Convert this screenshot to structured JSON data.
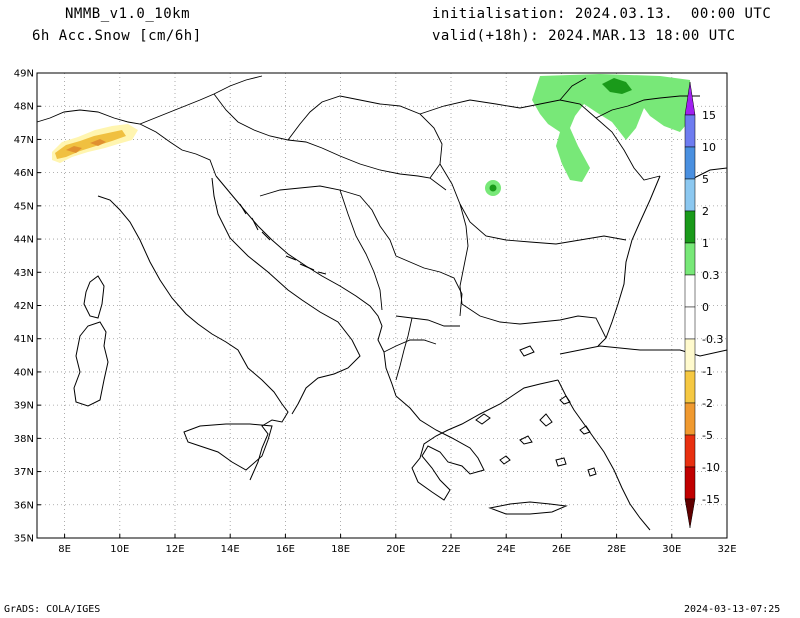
{
  "header": {
    "model": "NMMB_v1.0_10km",
    "variable": "6h Acc.Snow [cm/6h]",
    "init": "initialisation: 2024.03.13.  00:00 UTC",
    "valid": "valid(+18h): 2024.MAR.13 18:00 UTC"
  },
  "footer": {
    "credit": "GrADS: COLA/IGES",
    "timestamp": "2024-03-13-07:25"
  },
  "axes": {
    "lat_labels": [
      "35N",
      "36N",
      "37N",
      "38N",
      "39N",
      "40N",
      "41N",
      "42N",
      "43N",
      "44N",
      "45N",
      "46N",
      "47N",
      "48N",
      "49N"
    ],
    "lon_labels": [
      "8E",
      "10E",
      "12E",
      "14E",
      "16E",
      "18E",
      "20E",
      "22E",
      "24E",
      "26E",
      "28E",
      "30E",
      "32E"
    ],
    "lat_range": [
      35,
      49
    ],
    "lon_range": [
      7,
      32
    ]
  },
  "colorbar": {
    "labels": [
      "15",
      "10",
      "5",
      "2",
      "1",
      "0.3",
      "0",
      "-0.3",
      "-1",
      "-2",
      "-5",
      "-10",
      "-15"
    ],
    "colors": {
      "above_15": "#a020f0",
      "10_15": "#6e7cf0",
      "5_10": "#4a90e0",
      "2_5": "#8cc8f0",
      "1_2": "#1a9a1a",
      "03_1": "#78e878",
      "neg03_0": "#fffacd",
      "neg1_neg03": "#f5c842",
      "neg2_neg1": "#f09a30",
      "neg5_neg2": "#e83010",
      "neg10_neg5": "#c00000",
      "neg15_neg10": "#800000",
      "below_neg15": "#600000"
    }
  },
  "colors": {
    "coast": "#000000",
    "border": "#000000",
    "grid": "#999999",
    "light_green": "#78e878",
    "dark_green": "#1a9a1a",
    "yellow": "#fff5b0",
    "orange": "#f0c040",
    "dark_orange": "#e09030"
  }
}
